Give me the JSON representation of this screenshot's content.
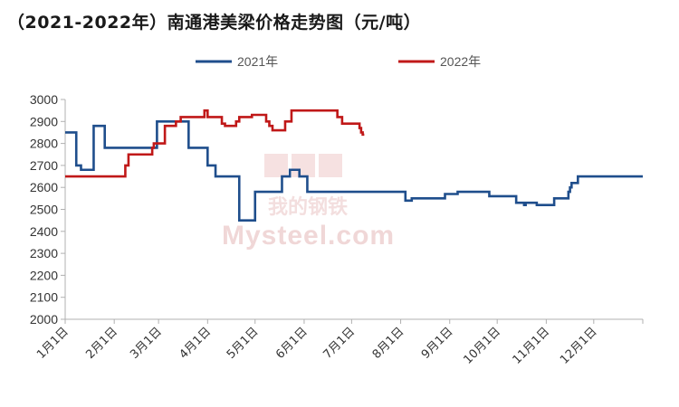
{
  "chart_data": {
    "type": "line",
    "title": "（2021-2022年）南通港美梁价格走势图（元/吨）",
    "xlabel": "",
    "ylabel": "",
    "ylim": [
      2000,
      3000
    ],
    "yticks": [
      2000,
      2100,
      2200,
      2300,
      2400,
      2500,
      2600,
      2700,
      2800,
      2900,
      3000
    ],
    "x_tick_labels": [
      "1月1日",
      "2月1日",
      "3月1日",
      "4月1日",
      "5月1日",
      "6月1日",
      "7月1日",
      "8月1日",
      "9月1日",
      "10月1日",
      "11月1日",
      "12月1日"
    ],
    "x_tick_day_of_year": [
      1,
      32,
      60,
      91,
      121,
      152,
      182,
      213,
      244,
      274,
      305,
      335
    ],
    "x_range_day_of_year": [
      1,
      366
    ],
    "grid": false,
    "legend_position": "top",
    "watermark": {
      "cn": "我的钢铁",
      "en": "Mysteel.com"
    },
    "series": [
      {
        "name": "2021年",
        "color": "#1f4e8c",
        "points": [
          [
            1,
            2850
          ],
          [
            7,
            2850
          ],
          [
            8,
            2700
          ],
          [
            10,
            2700
          ],
          [
            11,
            2680
          ],
          [
            18,
            2680
          ],
          [
            19,
            2880
          ],
          [
            25,
            2880
          ],
          [
            26,
            2780
          ],
          [
            32,
            2780
          ],
          [
            45,
            2780
          ],
          [
            55,
            2780
          ],
          [
            58,
            2780
          ],
          [
            59,
            2900
          ],
          [
            62,
            2900
          ],
          [
            70,
            2900
          ],
          [
            78,
            2900
          ],
          [
            79,
            2780
          ],
          [
            90,
            2780
          ],
          [
            91,
            2700
          ],
          [
            95,
            2700
          ],
          [
            96,
            2650
          ],
          [
            110,
            2650
          ],
          [
            111,
            2450
          ],
          [
            120,
            2450
          ],
          [
            121,
            2580
          ],
          [
            135,
            2580
          ],
          [
            138,
            2650
          ],
          [
            142,
            2650
          ],
          [
            143,
            2680
          ],
          [
            148,
            2680
          ],
          [
            149,
            2650
          ],
          [
            153,
            2650
          ],
          [
            154,
            2580
          ],
          [
            170,
            2580
          ],
          [
            182,
            2580
          ],
          [
            200,
            2580
          ],
          [
            213,
            2580
          ],
          [
            215,
            2580
          ],
          [
            216,
            2540
          ],
          [
            219,
            2540
          ],
          [
            220,
            2550
          ],
          [
            240,
            2550
          ],
          [
            241,
            2570
          ],
          [
            248,
            2570
          ],
          [
            249,
            2580
          ],
          [
            260,
            2580
          ],
          [
            268,
            2580
          ],
          [
            269,
            2560
          ],
          [
            285,
            2560
          ],
          [
            286,
            2530
          ],
          [
            290,
            2530
          ],
          [
            291,
            2520
          ],
          [
            292,
            2530
          ],
          [
            298,
            2530
          ],
          [
            299,
            2520
          ],
          [
            309,
            2520
          ],
          [
            310,
            2550
          ],
          [
            318,
            2550
          ],
          [
            319,
            2580
          ],
          [
            320,
            2600
          ],
          [
            321,
            2620
          ],
          [
            324,
            2620
          ],
          [
            325,
            2650
          ],
          [
            335,
            2650
          ],
          [
            350,
            2650
          ],
          [
            366,
            2650
          ]
        ]
      },
      {
        "name": "2022年",
        "color": "#c01818",
        "points": [
          [
            1,
            2650
          ],
          [
            37,
            2650
          ],
          [
            39,
            2700
          ],
          [
            41,
            2750
          ],
          [
            55,
            2750
          ],
          [
            56,
            2780
          ],
          [
            57,
            2800
          ],
          [
            63,
            2800
          ],
          [
            64,
            2880
          ],
          [
            70,
            2880
          ],
          [
            71,
            2900
          ],
          [
            73,
            2900
          ],
          [
            74,
            2920
          ],
          [
            88,
            2920
          ],
          [
            89,
            2950
          ],
          [
            90,
            2950
          ],
          [
            91,
            2920
          ],
          [
            99,
            2920
          ],
          [
            100,
            2890
          ],
          [
            102,
            2880
          ],
          [
            108,
            2880
          ],
          [
            109,
            2900
          ],
          [
            110,
            2900
          ],
          [
            111,
            2920
          ],
          [
            118,
            2920
          ],
          [
            119,
            2930
          ],
          [
            127,
            2930
          ],
          [
            128,
            2900
          ],
          [
            130,
            2880
          ],
          [
            132,
            2860
          ],
          [
            139,
            2860
          ],
          [
            140,
            2900
          ],
          [
            143,
            2900
          ],
          [
            144,
            2950
          ],
          [
            160,
            2950
          ],
          [
            170,
            2950
          ],
          [
            172,
            2950
          ],
          [
            173,
            2920
          ],
          [
            175,
            2920
          ],
          [
            176,
            2890
          ],
          [
            186,
            2890
          ],
          [
            187,
            2870
          ],
          [
            188,
            2850
          ],
          [
            189,
            2840
          ],
          [
            190,
            2840
          ]
        ]
      }
    ]
  }
}
